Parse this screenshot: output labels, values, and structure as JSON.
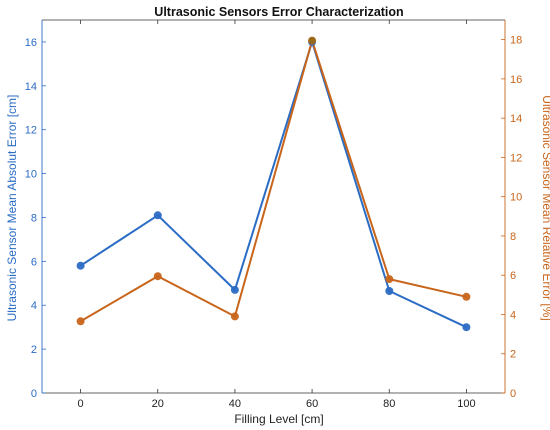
{
  "chart_data": {
    "type": "line",
    "title": "Ultrasonic Sensors Error Characterization",
    "xlabel": "Filling Level [cm]",
    "ylabel_left": "Ultrasonic Sensor Mean Absolut Error [cm]",
    "ylabel_right": "Ultrasonic Sensor Mean Relative Error [%]",
    "x": [
      0,
      20,
      40,
      60,
      80,
      100
    ],
    "xlim": [
      -10,
      110
    ],
    "x_ticks": [
      "0",
      "20",
      "40",
      "60",
      "80",
      "100"
    ],
    "ylim_left": [
      0,
      17
    ],
    "y_ticks_left": [
      "0",
      "2",
      "4",
      "6",
      "8",
      "10",
      "12",
      "14",
      "16"
    ],
    "ylim_right": [
      0,
      19
    ],
    "y_ticks_right": [
      "0",
      "2",
      "4",
      "6",
      "8",
      "10",
      "12",
      "14",
      "16",
      "18"
    ],
    "grid": false,
    "series": [
      {
        "axis": "left",
        "color": "#2b6cc4",
        "values": [
          5.8,
          8.1,
          4.7,
          16.0,
          4.65,
          3.0
        ]
      },
      {
        "axis": "right",
        "color": "#c8651b",
        "values": [
          3.65,
          5.95,
          3.9,
          17.95,
          5.8,
          4.9
        ]
      }
    ],
    "overlap_color": "#8a6a1a",
    "colors": {
      "left_axis": "#2b6cc4",
      "right_axis": "#c8651b",
      "frame": "#333333"
    }
  }
}
